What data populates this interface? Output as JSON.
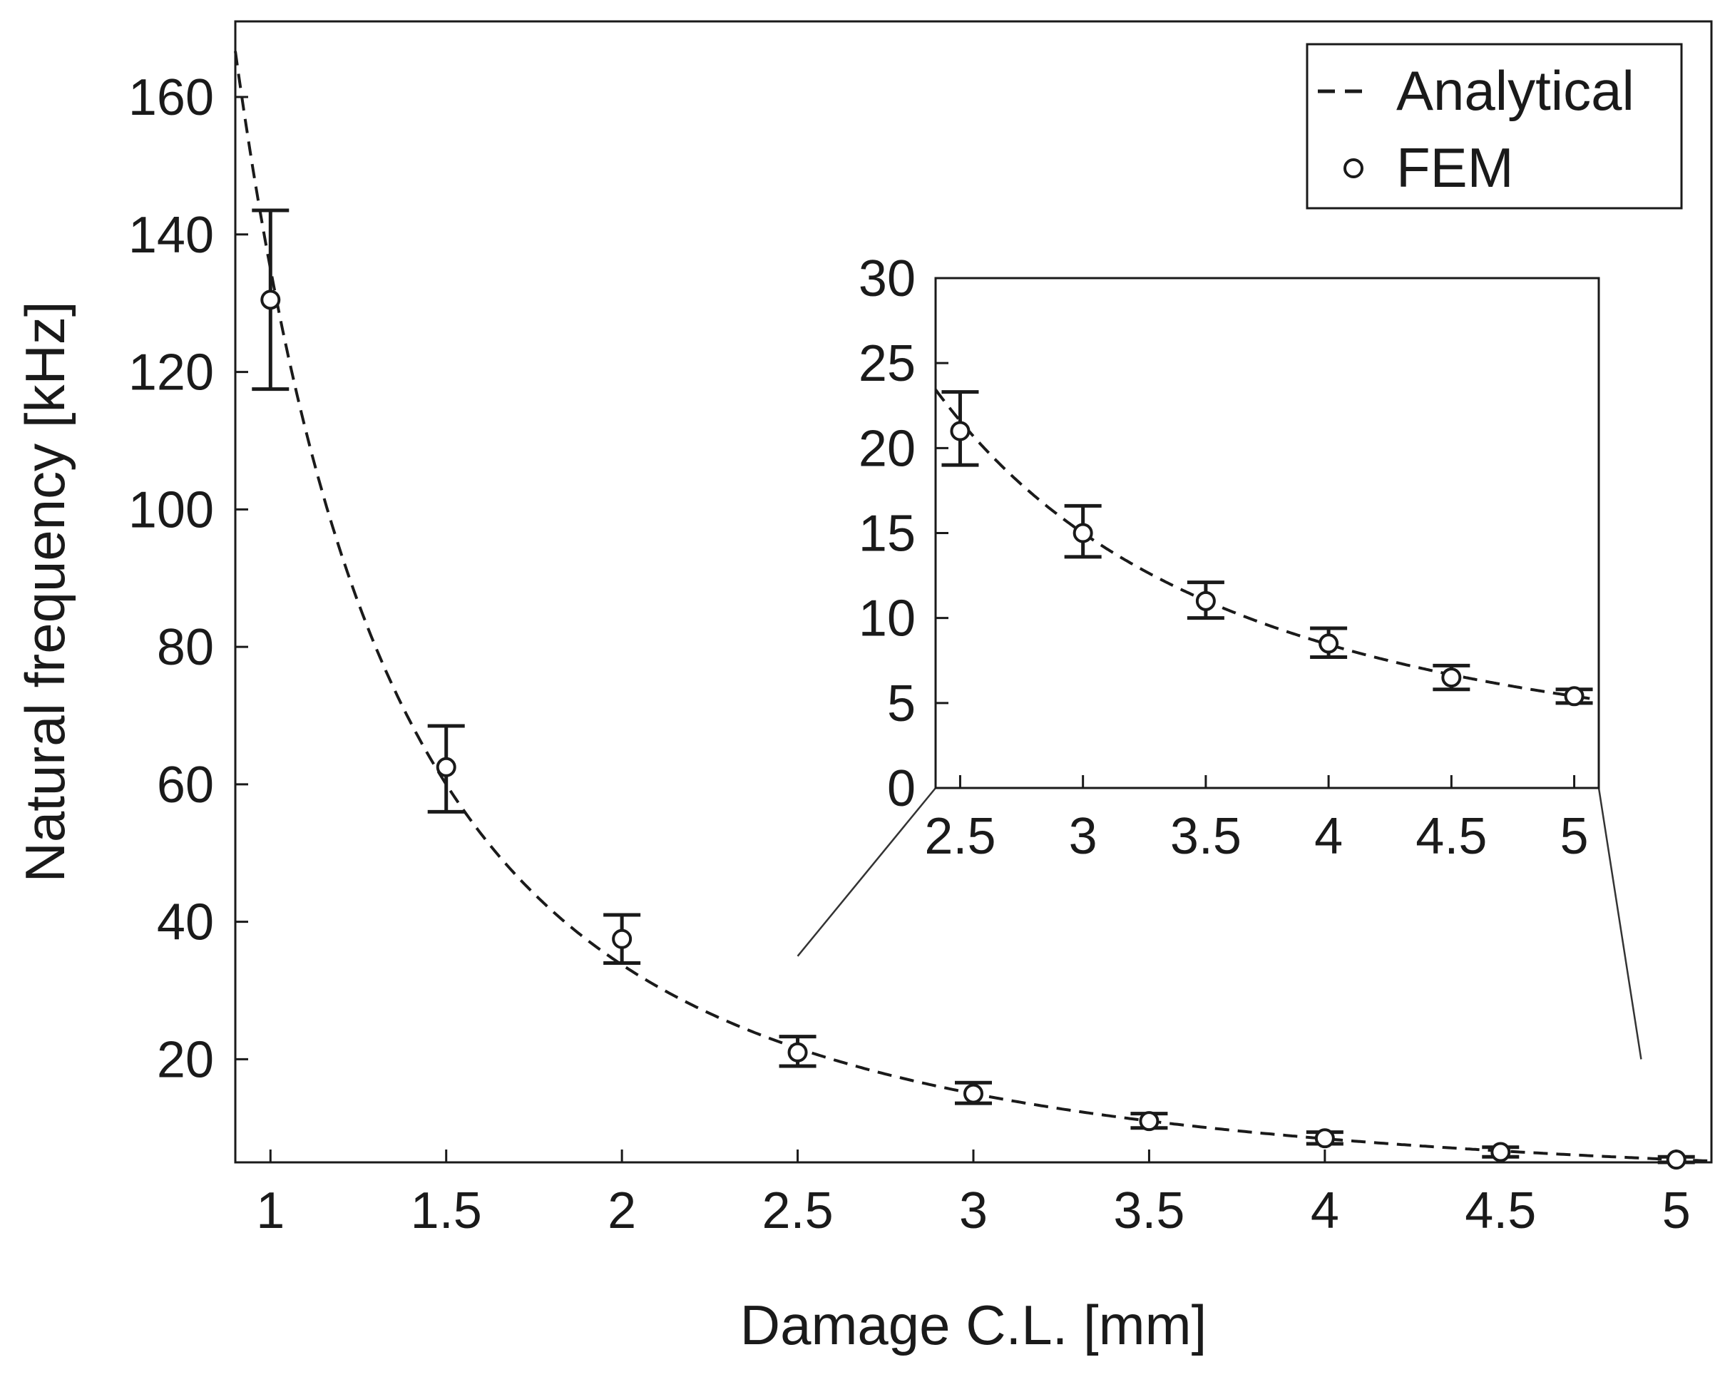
{
  "chart_data": [
    {
      "id": "main",
      "type": "scatter",
      "title": "",
      "xlabel": "Damage C.L. [mm]",
      "ylabel": "Natural frequency [kHz]",
      "xlim": [
        0.9,
        5.1
      ],
      "ylim": [
        5,
        171
      ],
      "xticks": [
        1,
        1.5,
        2,
        2.5,
        3,
        3.5,
        4,
        4.5,
        5
      ],
      "xtick_labels": [
        "1",
        "1.5",
        "2",
        "2.5",
        "3",
        "3.5",
        "4",
        "4.5",
        "5"
      ],
      "yticks": [
        20,
        40,
        60,
        80,
        100,
        120,
        140,
        160
      ],
      "ytick_labels": [
        "20",
        "40",
        "60",
        "80",
        "100",
        "120",
        "140",
        "160"
      ],
      "grid": false,
      "legend": {
        "position": "top-right",
        "entries": [
          {
            "label": "Analytical",
            "style": "dashed-line"
          },
          {
            "label": "FEM",
            "style": "open-circle"
          }
        ]
      },
      "series": [
        {
          "name": "Analytical",
          "kind": "line",
          "model": "a / x^2",
          "a": 135,
          "color": "#1a1a1a"
        },
        {
          "name": "FEM",
          "kind": "errorbar",
          "color": "#1a1a1a",
          "points": [
            {
              "x": 1.0,
              "y": 130.5,
              "low": 117.5,
              "high": 143.5
            },
            {
              "x": 1.5,
              "y": 62.5,
              "low": 56.0,
              "high": 68.5
            },
            {
              "x": 2.0,
              "y": 37.5,
              "low": 34.0,
              "high": 41.0
            },
            {
              "x": 2.5,
              "y": 21.0,
              "low": 19.0,
              "high": 23.3
            },
            {
              "x": 3.0,
              "y": 15.0,
              "low": 13.6,
              "high": 16.6
            },
            {
              "x": 3.5,
              "y": 11.0,
              "low": 10.0,
              "high": 12.1
            },
            {
              "x": 4.0,
              "y": 8.5,
              "low": 7.7,
              "high": 9.4
            },
            {
              "x": 4.5,
              "y": 6.5,
              "low": 5.8,
              "high": 7.2
            },
            {
              "x": 5.0,
              "y": 5.4,
              "low": 5.0,
              "high": 5.8
            }
          ]
        }
      ]
    },
    {
      "id": "inset",
      "type": "scatter",
      "title": "",
      "xlabel": "",
      "ylabel": "",
      "xlim": [
        2.4,
        5.1
      ],
      "ylim": [
        0,
        30
      ],
      "xticks": [
        2.5,
        3,
        3.5,
        4,
        4.5,
        5
      ],
      "xtick_labels": [
        "2.5",
        "3",
        "3.5",
        "4",
        "4.5",
        "5"
      ],
      "yticks": [
        0,
        5,
        10,
        15,
        20,
        25,
        30
      ],
      "ytick_labels": [
        "0",
        "5",
        "10",
        "15",
        "20",
        "25",
        "30"
      ],
      "grid": false,
      "zoom_of": "main",
      "series": [
        {
          "name": "Analytical",
          "kind": "line",
          "model": "a / x^2",
          "a": 135,
          "color": "#1a1a1a"
        },
        {
          "name": "FEM",
          "kind": "errorbar",
          "color": "#1a1a1a",
          "points": [
            {
              "x": 2.5,
              "y": 21.0,
              "low": 19.0,
              "high": 23.3
            },
            {
              "x": 3.0,
              "y": 15.0,
              "low": 13.6,
              "high": 16.6
            },
            {
              "x": 3.5,
              "y": 11.0,
              "low": 10.0,
              "high": 12.1
            },
            {
              "x": 4.0,
              "y": 8.5,
              "low": 7.7,
              "high": 9.4
            },
            {
              "x": 4.5,
              "y": 6.5,
              "low": 5.8,
              "high": 7.2
            },
            {
              "x": 5.0,
              "y": 5.4,
              "low": 5.0,
              "high": 5.8
            }
          ]
        }
      ]
    }
  ]
}
